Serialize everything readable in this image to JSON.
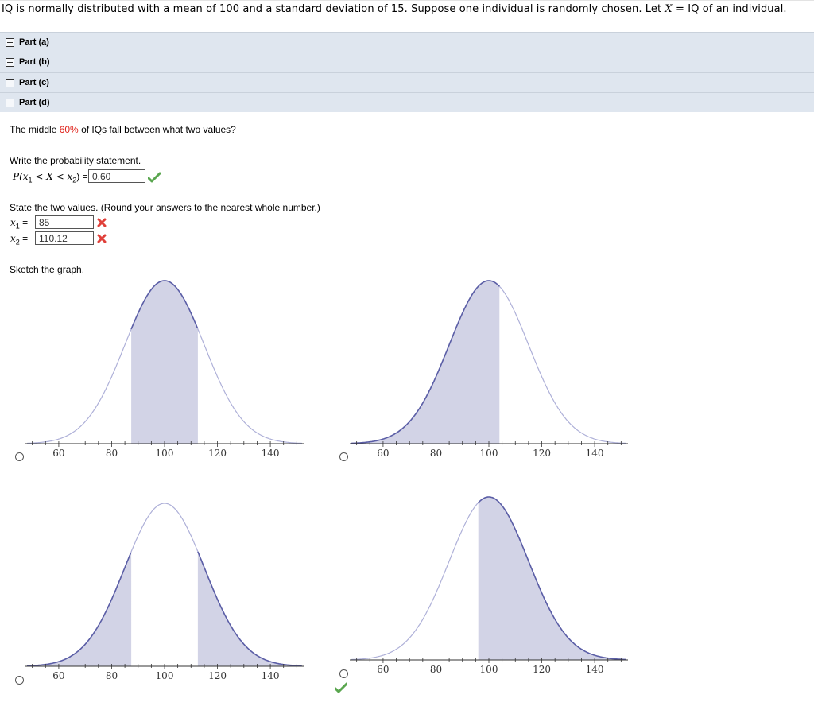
{
  "question": {
    "intro": "IQ is normally distributed with a mean of 100 and a standard deviation of 15. Suppose one individual is randomly chosen. Let ",
    "var": "X",
    "rest": " = IQ of an individual."
  },
  "parts": [
    {
      "label": "Part (a)",
      "state": "collapsed"
    },
    {
      "label": "Part (b)",
      "state": "collapsed"
    },
    {
      "label": "Part (c)",
      "state": "collapsed"
    },
    {
      "label": "Part (d)",
      "state": "expanded"
    }
  ],
  "part_d": {
    "prompt_pre": "The middle ",
    "prompt_pct": "60%",
    "prompt_post": " of IQs fall between what two values?",
    "prob_instruction": "Write the probability statement.",
    "prob_lhs": "P(x",
    "prob_sub1": "1",
    "prob_mid": " < X < x",
    "prob_sub2": "2",
    "prob_end": ") =",
    "prob_value": "0.60",
    "prob_status": "correct",
    "values_instruction": "State the two values. (Round your answers to the nearest whole number.)",
    "x1_label": "x",
    "x1_sub": "1",
    "x1_value": "85",
    "x1_status": "incorrect",
    "x2_label": "x",
    "x2_sub": "2",
    "x2_value": "110.12",
    "x2_status": "incorrect",
    "eq": "=",
    "sketch_instruction": "Sketch the graph."
  },
  "chart_data": [
    {
      "type": "area",
      "mean": 100,
      "sd": 15,
      "x_ticks": [
        60,
        80,
        100,
        120,
        140
      ],
      "xlim": [
        48,
        152
      ],
      "shaded": [
        [
          87.4,
          112.6
        ]
      ],
      "selected": true,
      "status": ""
    },
    {
      "type": "area",
      "mean": 100,
      "sd": 15,
      "x_ticks": [
        60,
        80,
        100,
        120,
        140
      ],
      "xlim": [
        48,
        152
      ],
      "shaded": [
        [
          48,
          104
        ]
      ],
      "selected": false,
      "status": ""
    },
    {
      "type": "area",
      "mean": 100,
      "sd": 15,
      "x_ticks": [
        60,
        80,
        100,
        120,
        140
      ],
      "xlim": [
        48,
        152
      ],
      "shaded": [
        [
          48,
          87.4
        ],
        [
          112.6,
          152
        ]
      ],
      "selected": false,
      "status": ""
    },
    {
      "type": "area",
      "mean": 100,
      "sd": 15,
      "x_ticks": [
        60,
        80,
        100,
        120,
        140
      ],
      "xlim": [
        48,
        152
      ],
      "shaded": [
        [
          96,
          152
        ]
      ],
      "selected": false,
      "status": "correct"
    }
  ],
  "colors": {
    "shade": "#d2d3e6",
    "curve_dark": "#5b5ea6",
    "curve_light": "#aeb0d8",
    "correct": "#5aa64f",
    "incorrect": "#e0403a",
    "selected_radio": "#3c7bd6",
    "part_bar": "#dfe6ef"
  }
}
